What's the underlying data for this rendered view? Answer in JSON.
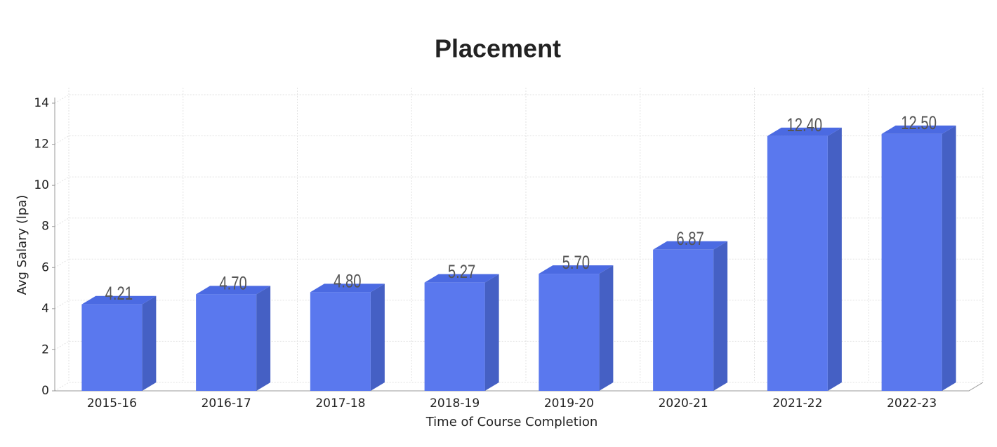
{
  "chart_data": {
    "type": "bar3d",
    "title": "Placement",
    "x_label": "Time of Course Completion",
    "y_label": "Avg Salary (lpa)",
    "categories": [
      "2015-16",
      "2016-17",
      "2017-18",
      "2018-19",
      "2019-20",
      "2020-21",
      "2021-22",
      "2022-23"
    ],
    "values": [
      4.21,
      4.7,
      4.8,
      5.27,
      5.7,
      6.87,
      12.4,
      12.5
    ],
    "value_labels": [
      "4.21",
      "4.70",
      "4.80",
      "5.27",
      "5.70",
      "6.87",
      "12.40",
      "12.50"
    ],
    "color": "#5a78ee",
    "ylim": [
      0,
      14
    ],
    "yticks": [
      0,
      2,
      4,
      6,
      8,
      10,
      12,
      14
    ],
    "grid": true
  }
}
